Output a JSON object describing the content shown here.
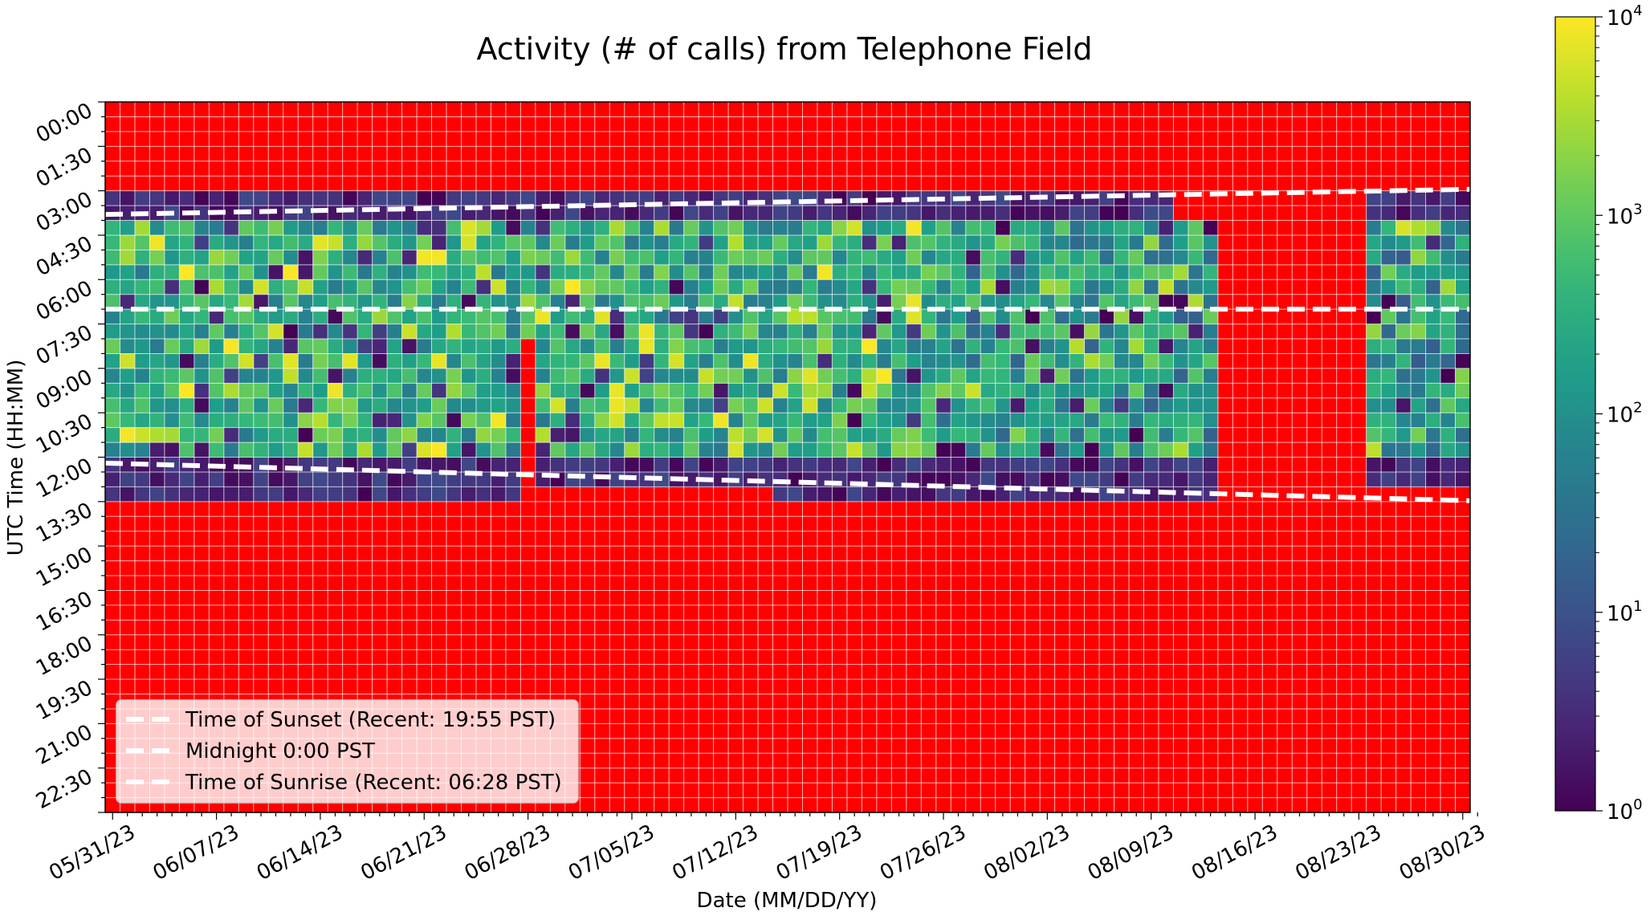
{
  "chart_data": {
    "type": "heatmap",
    "title": "Activity (# of calls) from Telephone Field",
    "xlabel": "Date (MM/DD/YY)",
    "ylabel": "UTC Time (HH:MM)",
    "x_start_date": "05/31/23",
    "x_end_date": "08/30/23",
    "x_tick_labels": [
      "05/31/23",
      "06/07/23",
      "06/14/23",
      "06/21/23",
      "06/28/23",
      "07/05/23",
      "07/12/23",
      "07/19/23",
      "07/26/23",
      "08/02/23",
      "08/09/23",
      "08/16/23",
      "08/23/23",
      "08/30/23"
    ],
    "y_tick_labels": [
      "00:00",
      "01:30",
      "03:00",
      "04:30",
      "06:00",
      "07:30",
      "09:00",
      "10:30",
      "12:00",
      "13:30",
      "15:00",
      "16:30",
      "18:00",
      "19:30",
      "21:00",
      "22:30"
    ],
    "y_range_hours": [
      0,
      24
    ],
    "time_bin_minutes": 30,
    "no_data_color": "#ff0000",
    "colorbar": {
      "scale": "log",
      "range": [
        1,
        10000
      ],
      "tick_labels": [
        "10^0",
        "10^1",
        "10^2",
        "10^3",
        "10^4"
      ],
      "colormap": "viridis"
    },
    "active_window": {
      "recorded_start_hour": 3.0,
      "recorded_end_hour": 13.5,
      "note_gap_dates": [
        "08/13/23",
        "08/22/23"
      ]
    },
    "series": [
      {
        "name": "Time of Sunset (Recent: 19:55 PST)",
        "start_hour_utc": 3.8,
        "end_hour_utc": 2.95
      },
      {
        "name": "Midnight 0:00 PST",
        "start_hour_utc": 7.0,
        "end_hour_utc": 7.0
      },
      {
        "name": "Time of Sunrise (Recent: 06:28 PST)",
        "start_hour_utc": 12.2,
        "end_hour_utc": 13.47
      }
    ],
    "legend_location": "lower left",
    "grid": true
  }
}
